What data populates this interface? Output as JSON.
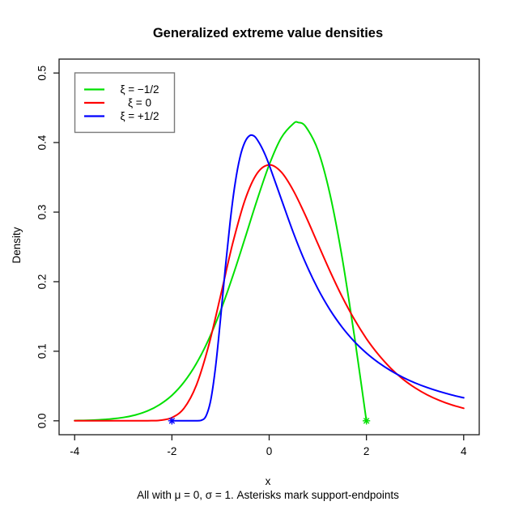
{
  "chart": {
    "title": "Generalized extreme value densities",
    "xlabel": "x",
    "ylabel": "Density",
    "subtitle": "All with μ = 0, σ = 1. Asterisks mark support-endpoints"
  },
  "chart_data": {
    "type": "line",
    "title": "Generalized extreme value densities",
    "xlabel": "x",
    "ylabel": "Density",
    "subtitle": "All with μ = 0, σ = 1. Asterisks mark support-endpoints",
    "xlim": [
      -4,
      4
    ],
    "ylim": [
      0,
      0.5
    ],
    "x_ticks": [
      -4,
      -2,
      0,
      2,
      4
    ],
    "x_tick_labels": [
      "-4",
      "-2",
      "0",
      "2",
      "4"
    ],
    "y_ticks": [
      0.0,
      0.1,
      0.2,
      0.3,
      0.4,
      0.5
    ],
    "y_tick_labels": [
      "0.0",
      "0.1",
      "0.2",
      "0.3",
      "0.4",
      "0.5"
    ],
    "grid": false,
    "legend_position": "top-left",
    "series": [
      {
        "name": "ξ = −1/2",
        "color": "#00e000",
        "points": [
          [
            -4,
            0.0004
          ],
          [
            -3.75,
            0.0007
          ],
          [
            -3.5,
            0.0014
          ],
          [
            -3.25,
            0.0027
          ],
          [
            -3,
            0.0048
          ],
          [
            -2.75,
            0.0084
          ],
          [
            -2.5,
            0.0142
          ],
          [
            -2.25,
            0.0233
          ],
          [
            -2,
            0.0366
          ],
          [
            -1.75,
            0.0558
          ],
          [
            -1.5,
            0.0819
          ],
          [
            -1.25,
            0.116
          ],
          [
            -1,
            0.1581
          ],
          [
            -0.75,
            0.2076
          ],
          [
            -0.5,
            0.262
          ],
          [
            -0.25,
            0.3172
          ],
          [
            0,
            0.3679
          ],
          [
            0.25,
            0.407
          ],
          [
            0.5,
            0.4274
          ],
          [
            0.6,
            0.4289
          ],
          [
            0.75,
            0.4229
          ],
          [
            1,
            0.3894
          ],
          [
            1.25,
            0.3258
          ],
          [
            1.5,
            0.2349
          ],
          [
            1.75,
            0.1231
          ],
          [
            1.8,
            0.099
          ],
          [
            1.9,
            0.0499
          ],
          [
            2,
            0
          ]
        ]
      },
      {
        "name": "ξ = 0",
        "color": "#ff0000",
        "points": [
          [
            -4,
            0
          ],
          [
            -3.5,
            0
          ],
          [
            -3,
            0
          ],
          [
            -2.5,
            0.0001
          ],
          [
            -2.25,
            0.0007
          ],
          [
            -2,
            0.0046
          ],
          [
            -1.75,
            0.0182
          ],
          [
            -1.5,
            0.0507
          ],
          [
            -1.25,
            0.1065
          ],
          [
            -1,
            0.1794
          ],
          [
            -0.75,
            0.2549
          ],
          [
            -0.5,
            0.317
          ],
          [
            -0.25,
            0.3556
          ],
          [
            0,
            0.3679
          ],
          [
            0.25,
            0.3575
          ],
          [
            0.5,
            0.3307
          ],
          [
            0.75,
            0.2945
          ],
          [
            1,
            0.2546
          ],
          [
            1.25,
            0.2152
          ],
          [
            1.5,
            0.1785
          ],
          [
            1.75,
            0.1461
          ],
          [
            2,
            0.1182
          ],
          [
            2.25,
            0.0949
          ],
          [
            2.5,
            0.0756
          ],
          [
            2.75,
            0.0599
          ],
          [
            3,
            0.0474
          ],
          [
            3.25,
            0.0373
          ],
          [
            3.5,
            0.0293
          ],
          [
            3.75,
            0.0229
          ],
          [
            4,
            0.018
          ]
        ]
      },
      {
        "name": "ξ = +1/2",
        "color": "#0000ff",
        "points": [
          [
            -2,
            0
          ],
          [
            -1.8,
            0
          ],
          [
            -1.6,
            0
          ],
          [
            -1.5,
            0
          ],
          [
            -1.4,
            0.0006
          ],
          [
            -1.3,
            0.0067
          ],
          [
            -1.2,
            0.0302
          ],
          [
            -1.1,
            0.0787
          ],
          [
            -1,
            0.1465
          ],
          [
            -0.9,
            0.2206
          ],
          [
            -0.8,
            0.2872
          ],
          [
            -0.7,
            0.3416
          ],
          [
            -0.6,
            0.379
          ],
          [
            -0.5,
            0.4006
          ],
          [
            -0.4,
            0.41
          ],
          [
            -0.3,
            0.4088
          ],
          [
            -0.2,
            0.399
          ],
          [
            -0.1,
            0.3852
          ],
          [
            0,
            0.3679
          ],
          [
            0.25,
            0.3187
          ],
          [
            0.5,
            0.27
          ],
          [
            0.75,
            0.2267
          ],
          [
            1,
            0.19
          ],
          [
            1.25,
            0.1596
          ],
          [
            1.5,
            0.1346
          ],
          [
            1.75,
            0.1141
          ],
          [
            2,
            0.0974
          ],
          [
            2.25,
            0.0835
          ],
          [
            2.5,
            0.0721
          ],
          [
            2.75,
            0.0625
          ],
          [
            3,
            0.0545
          ],
          [
            3.25,
            0.0478
          ],
          [
            3.5,
            0.0421
          ],
          [
            3.75,
            0.0373
          ],
          [
            4,
            0.0331
          ]
        ]
      }
    ],
    "markers": [
      {
        "x": -2,
        "y": 0,
        "shape": "asterisk",
        "color": "#0000ff"
      },
      {
        "x": 2,
        "y": 0,
        "shape": "asterisk",
        "color": "#00e000"
      }
    ]
  }
}
